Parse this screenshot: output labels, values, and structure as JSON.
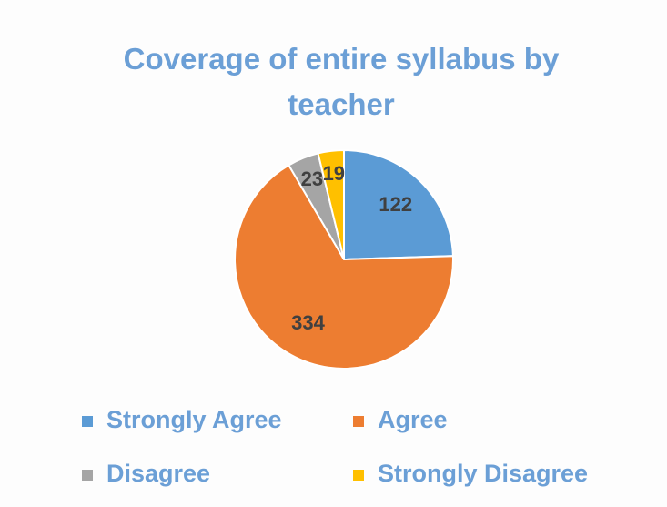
{
  "chart_data": {
    "type": "pie",
    "title": "Coverage of entire syllabus by teacher",
    "categories": [
      "Strongly Agree",
      "Agree",
      "Disagree",
      "Strongly Disagree"
    ],
    "values": [
      122,
      334,
      23,
      19
    ],
    "colors": [
      "#5b9bd5",
      "#ed7d31",
      "#a5a5a5",
      "#ffc000"
    ],
    "legend": "bottom"
  }
}
